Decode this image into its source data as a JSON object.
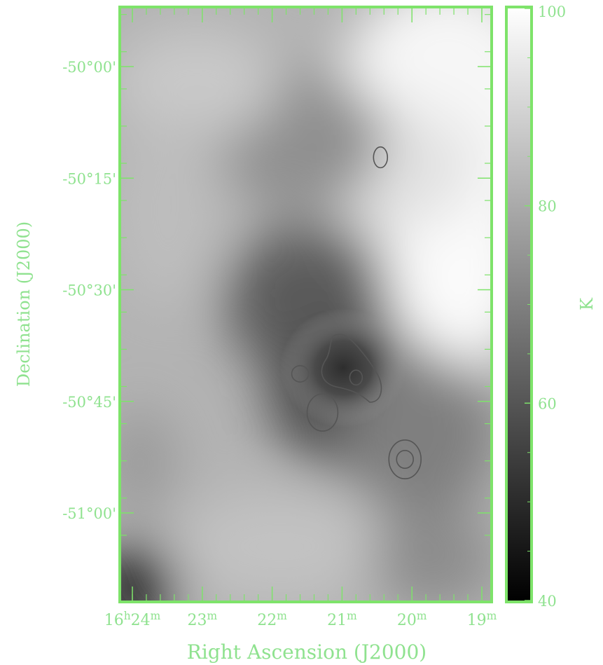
{
  "colors": {
    "axis": "#7ee36a",
    "label": "#8fe28f",
    "contour": "#555555"
  },
  "chart_data": {
    "type": "heatmap",
    "title": "",
    "xlabel": "Right Ascension (J2000)",
    "ylabel": "Declination (J2000)",
    "colorbar_label": "K",
    "colormap": "grayscale (black = low, white = high)",
    "xlim": [
      "16h24m25s",
      "16h18m55s"
    ],
    "ylim": [
      "-51°07'",
      "-49°53'"
    ],
    "x_tick_labels": [
      {
        "text": "16h24m",
        "ra_min": 24
      },
      {
        "text": "23m",
        "ra_min": 23
      },
      {
        "text": "22m",
        "ra_min": 22
      },
      {
        "text": "21m",
        "ra_min": 21
      },
      {
        "text": "20m",
        "ra_min": 20
      },
      {
        "text": "19m",
        "ra_min": 19
      }
    ],
    "y_tick_labels": [
      {
        "text": "-50°00'",
        "dec_arcmin": 0
      },
      {
        "text": "-50°15'",
        "dec_arcmin": -15
      },
      {
        "text": "-50°30'",
        "dec_arcmin": -30
      },
      {
        "text": "-50°45'",
        "dec_arcmin": -45
      },
      {
        "text": "-51°00'",
        "dec_arcmin": -60
      }
    ],
    "colorbar_ticks": [
      {
        "text": "100",
        "value": 100
      },
      {
        "text": "80",
        "value": 80
      },
      {
        "text": "60",
        "value": 60
      },
      {
        "text": "40",
        "value": 40
      }
    ],
    "colorbar_range": [
      40,
      100
    ],
    "grid": false,
    "contours": [
      {
        "ra_min": 20.45,
        "dec_arcmin": -12.2,
        "rx": 0.1,
        "ry": 1.4
      },
      {
        "ra_min": 21.6,
        "dec_arcmin": -41.3,
        "rx": 0.12,
        "ry": 1.1
      },
      {
        "ra_min": 21.28,
        "dec_arcmin": -46.5,
        "rx": 0.22,
        "ry": 2.5
      },
      {
        "ra_min": 20.8,
        "dec_arcmin": -41.8,
        "rx": 0.09,
        "ry": 1.0
      },
      {
        "ra_min": 20.1,
        "dec_arcmin": -52.8,
        "rx": 0.12,
        "ry": 1.2
      },
      {
        "ra_min": 20.1,
        "dec_arcmin": -52.8,
        "rx": 0.23,
        "ry": 2.6
      }
    ],
    "features": [
      {
        "name": "minimum",
        "ra_min": 21.0,
        "dec_arcmin": -41.0,
        "value_K": 50
      }
    ]
  }
}
